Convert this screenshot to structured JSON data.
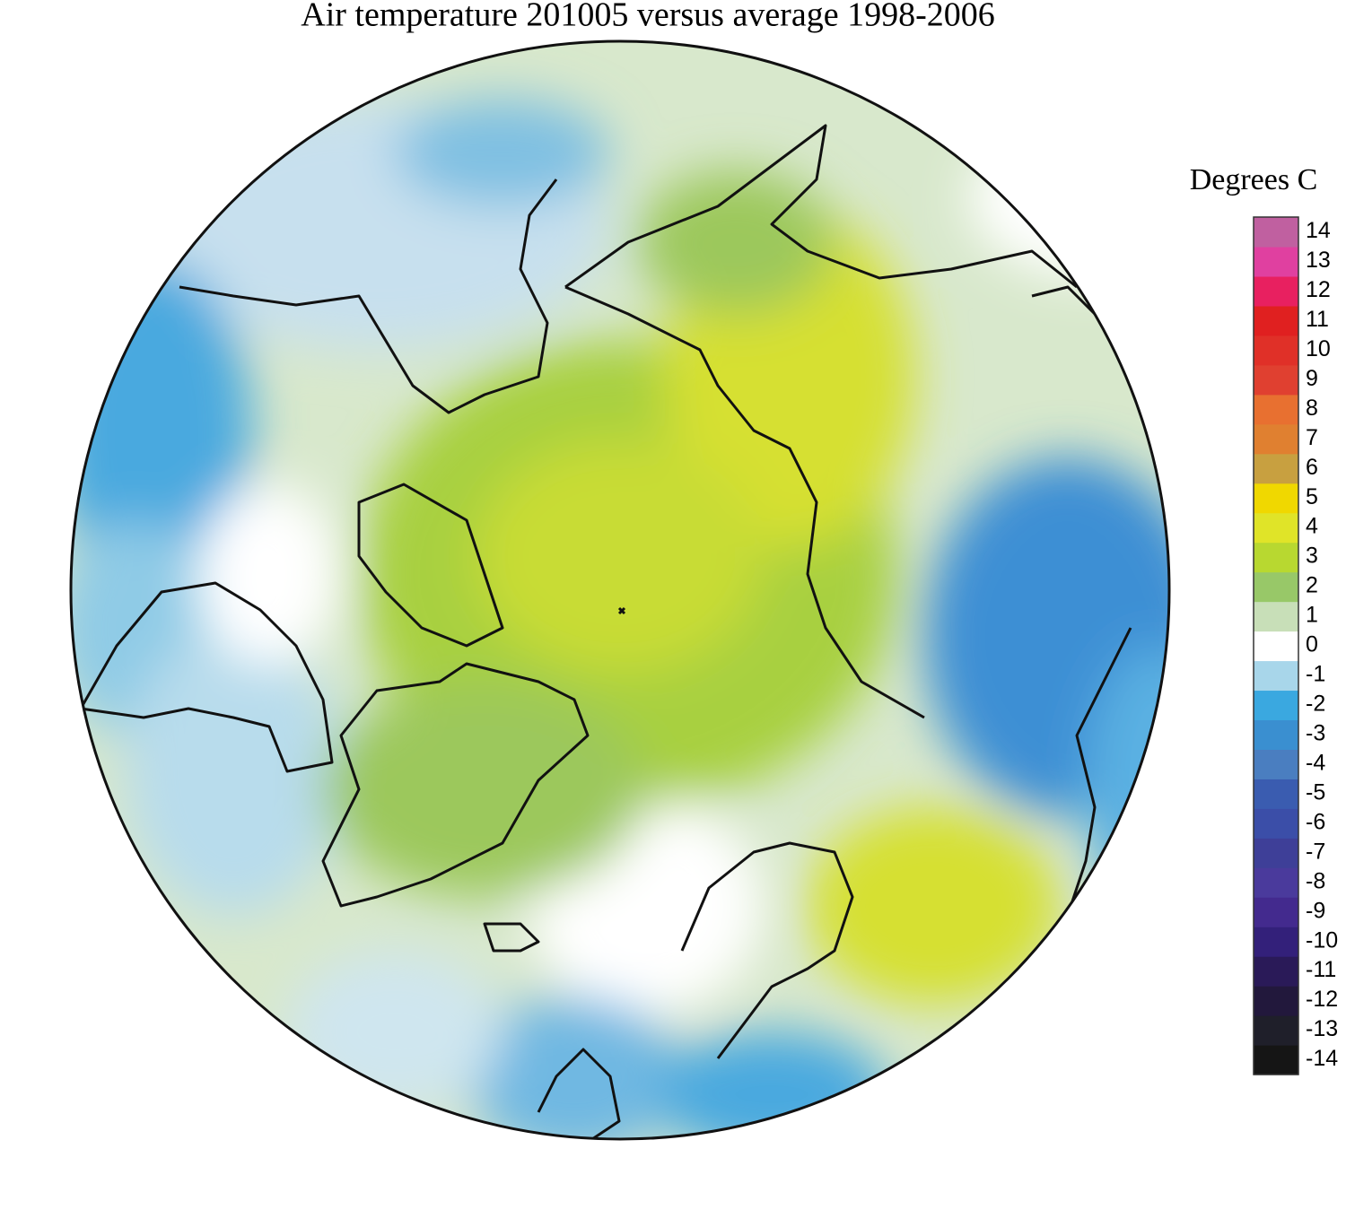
{
  "title": "Air temperature 201005 versus average 1998-2006",
  "legend": {
    "title": "Degrees C",
    "ticks": [
      -14,
      -13,
      -12,
      -11,
      -10,
      -9,
      -8,
      -7,
      -6,
      -5,
      -4,
      -3,
      -2,
      -1,
      0,
      1,
      2,
      3,
      4,
      5,
      6,
      7,
      8,
      9,
      10,
      11,
      12,
      13,
      14
    ],
    "colors": [
      "#151515",
      "#1f1f2a",
      "#22183c",
      "#2a1a58",
      "#33207a",
      "#432a8e",
      "#4a3a9c",
      "#3e3f98",
      "#3b4ea8",
      "#3a5cb0",
      "#4a7ec0",
      "#3a8fd0",
      "#3aa8e0",
      "#a8d6ea",
      "#ffffff",
      "#c8dfb8",
      "#98c868",
      "#b8d830",
      "#e0e428",
      "#f0d800",
      "#c8a040",
      "#e08030",
      "#e87030",
      "#e04030",
      "#e03028",
      "#e02020",
      "#e82060",
      "#e040a0",
      "#c060a0"
    ]
  }
}
